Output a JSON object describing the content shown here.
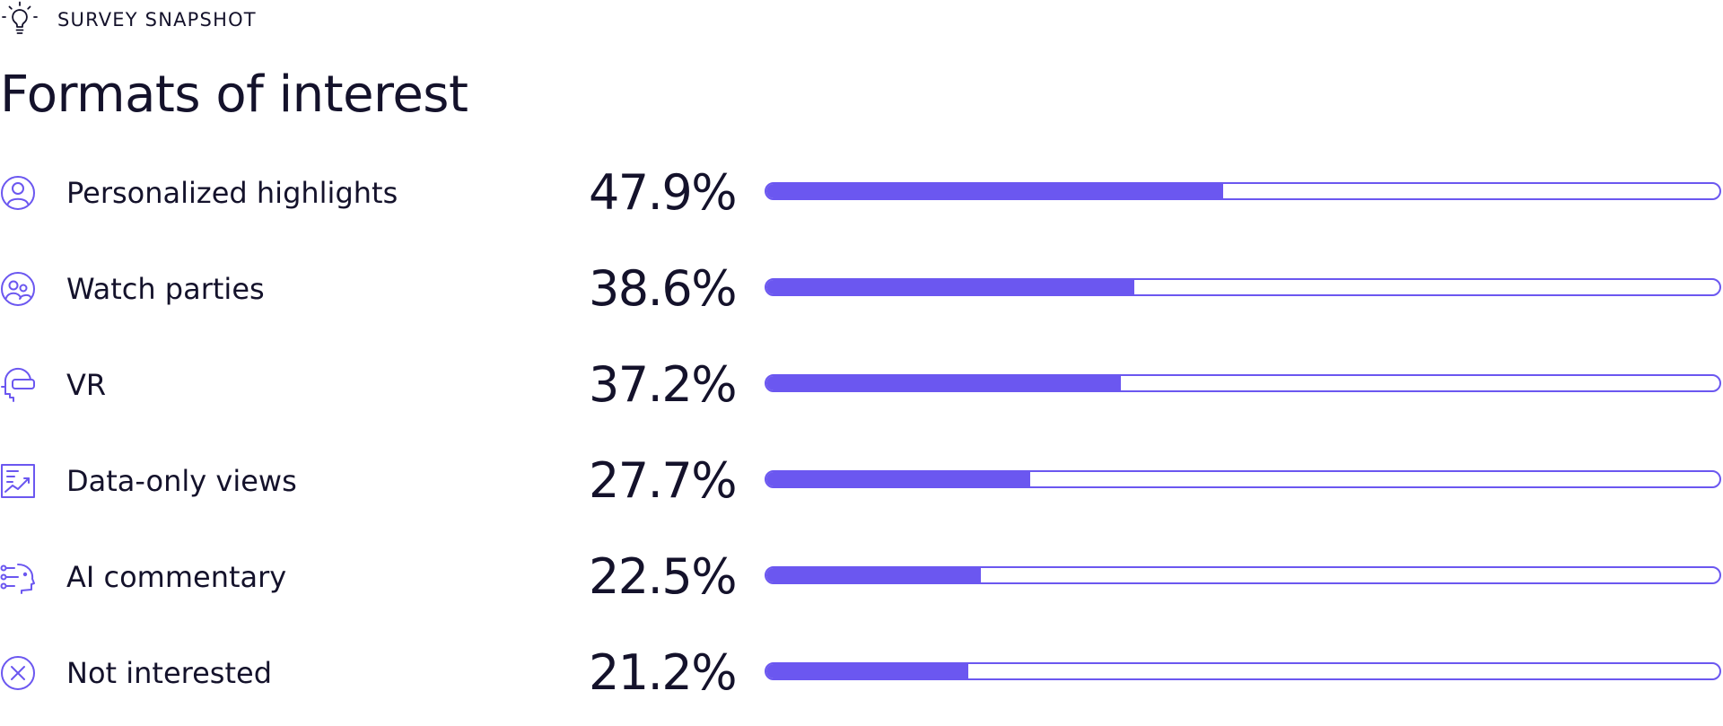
{
  "header": {
    "eyebrow": "SURVEY SNAPSHOT",
    "eyebrow_icon": "lightbulb-icon",
    "title": "Formats of interest"
  },
  "colors": {
    "accent": "#6b57f0",
    "text": "#14122b",
    "background": "#ffffff"
  },
  "chart_data": {
    "type": "bar",
    "orientation": "horizontal",
    "title": "Formats of interest",
    "xlim": [
      0,
      100
    ],
    "unit": "%",
    "categories": [
      "Personalized highlights",
      "Watch parties",
      "VR",
      "Data-only views",
      "AI commentary",
      "Not interested"
    ],
    "values": [
      47.9,
      38.6,
      37.2,
      27.7,
      22.5,
      21.2
    ],
    "value_labels": [
      "47.9%",
      "38.6%",
      "37.2%",
      "27.7%",
      "22.5%",
      "21.2%"
    ],
    "icons": [
      "person-circle-icon",
      "group-circle-icon",
      "vr-headset-icon",
      "chart-document-icon",
      "ai-head-icon",
      "x-circle-icon"
    ]
  }
}
